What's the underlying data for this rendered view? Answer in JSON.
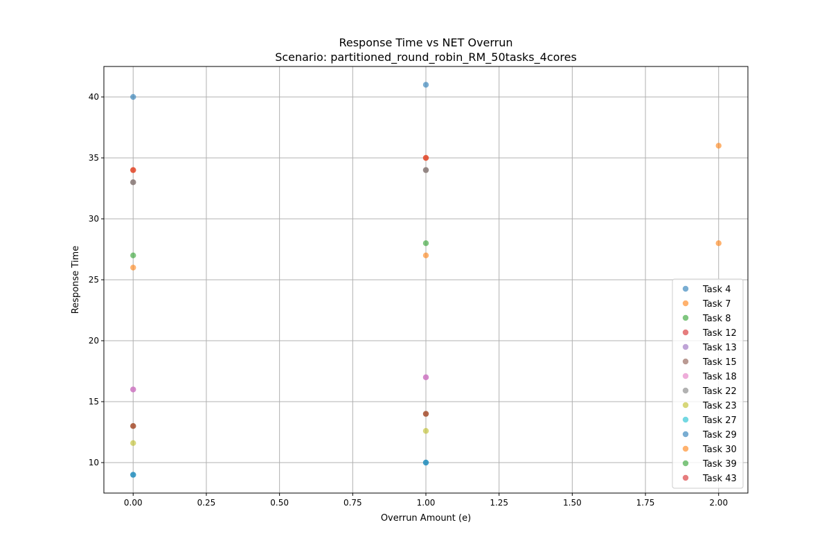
{
  "chart_data": {
    "type": "scatter",
    "title": "Response Time vs NET Overrun",
    "subtitle": "Scenario: partitioned_round_robin_RM_50tasks_4cores",
    "xlabel": "Overrun Amount (e)",
    "ylabel": "Response Time",
    "xlim": [
      -0.1,
      2.1
    ],
    "ylim": [
      7.5,
      42.5
    ],
    "xticks": [
      0.0,
      0.25,
      0.5,
      0.75,
      1.0,
      1.25,
      1.5,
      1.75,
      2.0
    ],
    "xtick_labels": [
      "0.00",
      "0.25",
      "0.50",
      "0.75",
      "1.00",
      "1.25",
      "1.50",
      "1.75",
      "2.00"
    ],
    "yticks": [
      10,
      15,
      20,
      25,
      30,
      35,
      40
    ],
    "ytick_labels": [
      "10",
      "15",
      "20",
      "25",
      "30",
      "35",
      "40"
    ],
    "grid": true,
    "legend_position": "lower-right",
    "series": [
      {
        "name": "Task 4",
        "color": "#1f77b4",
        "x": [
          0,
          1
        ],
        "y": [
          40,
          41
        ]
      },
      {
        "name": "Task 7",
        "color": "#ff7f0e",
        "x": [
          0,
          1,
          2
        ],
        "y": [
          34,
          35,
          36
        ]
      },
      {
        "name": "Task 8",
        "color": "#2ca02c",
        "x": [
          0,
          1
        ],
        "y": [
          27,
          28
        ]
      },
      {
        "name": "Task 12",
        "color": "#d62728",
        "x": [
          0,
          1
        ],
        "y": [
          34,
          35
        ]
      },
      {
        "name": "Task 13",
        "color": "#9467bd",
        "x": [
          0,
          1
        ],
        "y": [
          16,
          17
        ]
      },
      {
        "name": "Task 15",
        "color": "#8c564b",
        "x": [
          0,
          1
        ],
        "y": [
          33,
          34
        ]
      },
      {
        "name": "Task 18",
        "color": "#e377c2",
        "x": [
          0,
          1
        ],
        "y": [
          16,
          17
        ]
      },
      {
        "name": "Task 22",
        "color": "#7f7f7f",
        "x": [
          0,
          1
        ],
        "y": [
          33,
          34
        ]
      },
      {
        "name": "Task 23",
        "color": "#bcbd22",
        "x": [
          0,
          1
        ],
        "y": [
          11.6,
          12.6
        ]
      },
      {
        "name": "Task 27",
        "color": "#17becf",
        "x": [
          0,
          1
        ],
        "y": [
          9,
          10
        ]
      },
      {
        "name": "Task 29",
        "color": "#1f77b4",
        "x": [
          0,
          1
        ],
        "y": [
          9,
          10
        ]
      },
      {
        "name": "Task 30",
        "color": "#ff7f0e",
        "x": [
          0,
          1,
          2
        ],
        "y": [
          26,
          27,
          28
        ]
      },
      {
        "name": "Task 39",
        "color": "#2ca02c",
        "x": [
          0,
          1
        ],
        "y": [
          13,
          14
        ]
      },
      {
        "name": "Task 43",
        "color": "#d62728",
        "x": [
          0,
          1
        ],
        "y": [
          13,
          14
        ]
      }
    ]
  }
}
